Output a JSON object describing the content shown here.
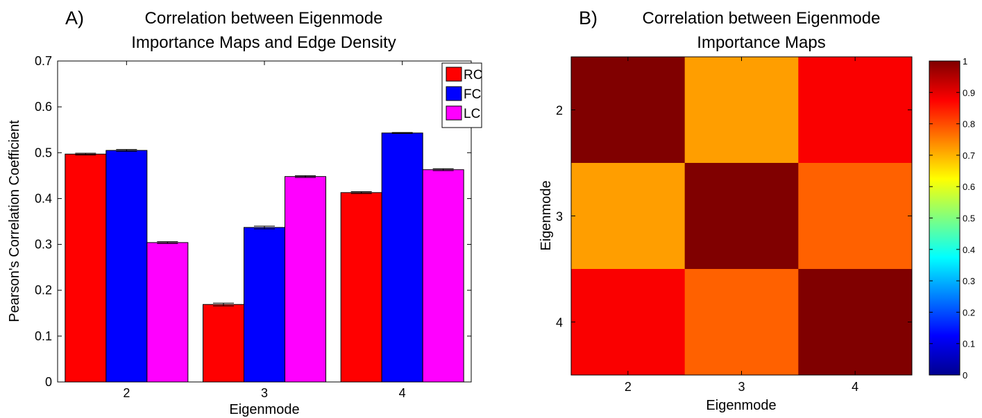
{
  "panel_a": {
    "letter": "A)",
    "title_line1": "Correlation between Eigenmode",
    "title_line2": "Importance Maps and Edge Density"
  },
  "panel_b": {
    "letter": "B)",
    "title_line1": "Correlation between Eigenmode",
    "title_line2": "Importance Maps"
  },
  "chart_data": [
    {
      "type": "bar",
      "title": "Correlation between Eigenmode Importance Maps and Edge Density",
      "xlabel": "Eigenmode",
      "ylabel": "Pearson's Correlation Coefficient",
      "categories": [
        "2",
        "3",
        "4"
      ],
      "ylim": [
        0,
        0.7
      ],
      "yticks": [
        0,
        0.1,
        0.2,
        0.3,
        0.4,
        0.5,
        0.6,
        0.7
      ],
      "ytick_labels": [
        "0",
        "0.1",
        "0.2",
        "0.3",
        "0.4",
        "0.5",
        "0.6",
        "0.7"
      ],
      "legend_position": "top-right",
      "error_bars": true,
      "series": [
        {
          "name": "RC",
          "color": "#ff0000",
          "values": [
            0.497,
            0.169,
            0.413
          ],
          "errors": [
            0.002,
            0.003,
            0.002
          ]
        },
        {
          "name": "FC",
          "color": "#0000ff",
          "values": [
            0.505,
            0.337,
            0.543
          ],
          "errors": [
            0.002,
            0.003,
            0.001
          ]
        },
        {
          "name": "LC",
          "color": "#ff00ff",
          "values": [
            0.304,
            0.448,
            0.463
          ],
          "errors": [
            0.002,
            0.002,
            0.002
          ]
        }
      ]
    },
    {
      "type": "heatmap",
      "title": "Correlation between Eigenmode Importance Maps",
      "xlabel": "Eigenmode",
      "ylabel": "Eigenmode",
      "x_categories": [
        "2",
        "3",
        "4"
      ],
      "y_categories": [
        "2",
        "3",
        "4"
      ],
      "values": [
        [
          1.0,
          0.72,
          0.88
        ],
        [
          0.72,
          1.0,
          0.78
        ],
        [
          0.88,
          0.78,
          1.0
        ]
      ],
      "colormap": "jet",
      "colorbar_range": [
        0,
        1
      ],
      "colorbar_ticks": [
        0,
        0.1,
        0.2,
        0.3,
        0.4,
        0.5,
        0.6,
        0.7,
        0.8,
        0.9,
        1
      ],
      "colorbar_tick_labels": [
        "0",
        "0.1",
        "0.2",
        "0.3",
        "0.4",
        "0.5",
        "0.6",
        "0.7",
        "0.8",
        "0.9",
        "1"
      ]
    }
  ]
}
